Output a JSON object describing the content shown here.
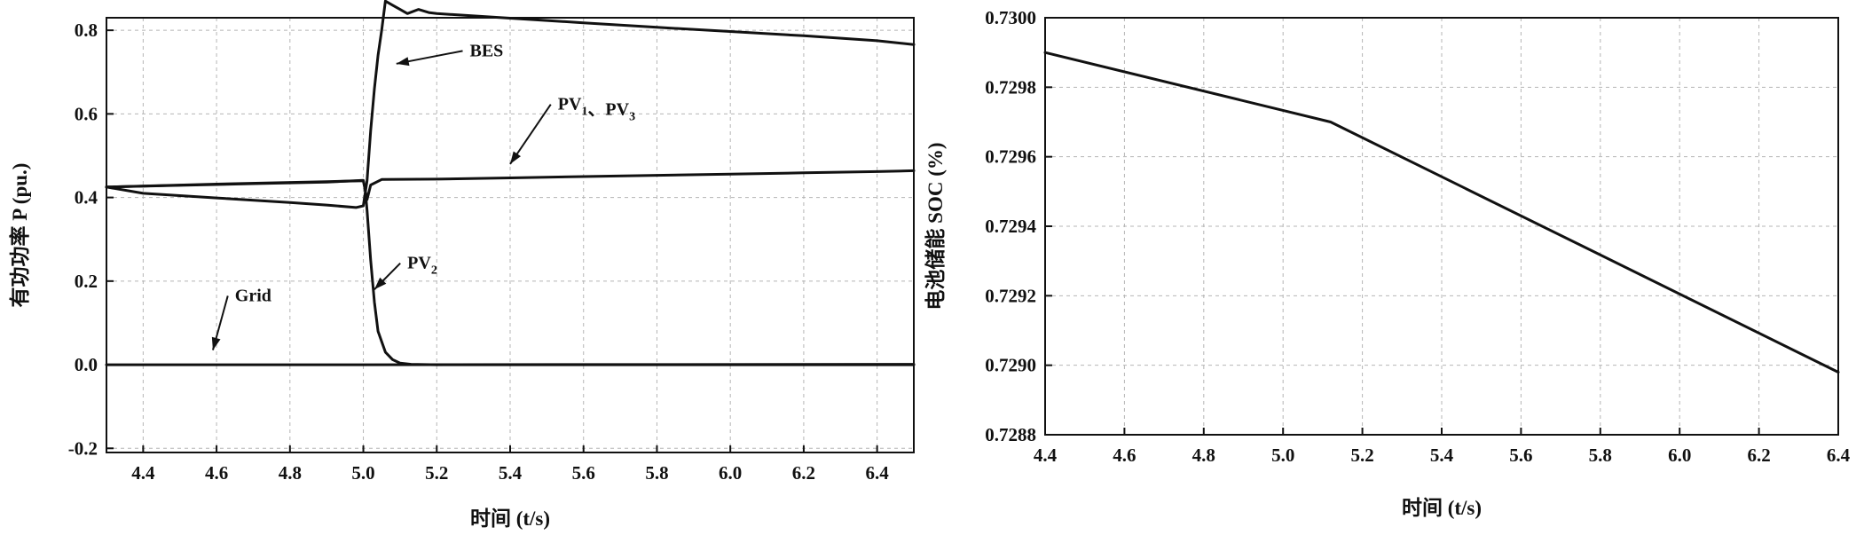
{
  "chart_data": [
    {
      "type": "line",
      "title": "",
      "xlabel": "时间 (t/s)",
      "ylabel": "有功功率 P (pu.)",
      "xlim": [
        4.3,
        6.5
      ],
      "ylim": [
        -0.21,
        0.83
      ],
      "xticks": [
        4.4,
        4.6,
        4.8,
        5.0,
        5.2,
        5.4,
        5.6,
        5.8,
        6.0,
        6.2,
        6.4
      ],
      "xticklabels": [
        "4.4",
        "4.6",
        "4.8",
        "5.0",
        "5.2",
        "5.4",
        "5.6",
        "5.8",
        "6.0",
        "6.2",
        "6.4"
      ],
      "yticks": [
        -0.2,
        0.0,
        0.2,
        0.4,
        0.6,
        0.8
      ],
      "yticklabels": [
        "-0.2",
        "0.0",
        "0.2",
        "0.4",
        "0.6",
        "0.8"
      ],
      "grid": true,
      "series": [
        {
          "name": "BES",
          "x": [
            4.3,
            4.4,
            4.6,
            4.8,
            4.9,
            4.98,
            5.0,
            5.01,
            5.02,
            5.03,
            5.04,
            5.05,
            5.06,
            5.08,
            5.1,
            5.12,
            5.15,
            5.18,
            5.2,
            5.4,
            5.6,
            5.8,
            6.0,
            6.2,
            6.4,
            6.5
          ],
          "y": [
            0.425,
            0.41,
            0.399,
            0.388,
            0.382,
            0.376,
            0.38,
            0.44,
            0.56,
            0.66,
            0.74,
            0.8,
            0.87,
            0.86,
            0.85,
            0.84,
            0.85,
            0.842,
            0.84,
            0.829,
            0.818,
            0.807,
            0.797,
            0.787,
            0.775,
            0.766
          ]
        },
        {
          "name": "PV1、PV3",
          "x": [
            4.3,
            4.5,
            4.7,
            4.9,
            5.0,
            5.01,
            5.02,
            5.05,
            5.2,
            5.4,
            5.6,
            5.8,
            6.0,
            6.2,
            6.4,
            6.5
          ],
          "y": [
            0.425,
            0.429,
            0.433,
            0.437,
            0.441,
            0.395,
            0.43,
            0.443,
            0.444,
            0.447,
            0.45,
            0.453,
            0.456,
            0.459,
            0.462,
            0.464
          ]
        },
        {
          "name": "PV2",
          "x": [
            4.3,
            4.6,
            4.9,
            5.0,
            5.005,
            5.01,
            5.02,
            5.03,
            5.04,
            5.06,
            5.08,
            5.1,
            5.13,
            5.2,
            5.6,
            6.0,
            6.4,
            6.5
          ],
          "y": [
            0.425,
            0.432,
            0.438,
            0.44,
            0.42,
            0.37,
            0.25,
            0.15,
            0.08,
            0.03,
            0.012,
            0.004,
            0.001,
            0.0,
            0.0,
            0.0,
            0.0,
            0.0
          ]
        },
        {
          "name": "Grid",
          "x": [
            4.3,
            5.0,
            6.5
          ],
          "y": [
            0.0,
            0.0,
            0.001
          ]
        }
      ],
      "annotations": [
        {
          "text": "BES",
          "x": 5.29,
          "y": 0.738,
          "tx": 5.09,
          "ty": 0.72
        },
        {
          "text": "PV",
          "sub": "1",
          "text2": "、PV",
          "sub2": "3",
          "x": 5.53,
          "y": 0.61,
          "tx": 5.4,
          "ty": 0.48
        },
        {
          "text": "PV",
          "sub": "2",
          "x": 5.12,
          "y": 0.23,
          "tx": 5.03,
          "ty": 0.18
        },
        {
          "text": "Grid",
          "x": 4.65,
          "y": 0.152,
          "tx": 4.59,
          "ty": 0.035
        }
      ]
    },
    {
      "type": "line",
      "title": "",
      "xlabel": "时间 (t/s)",
      "ylabel": "电池储能 SOC (%)",
      "xlim": [
        4.4,
        6.4
      ],
      "ylim": [
        0.7288,
        0.73
      ],
      "xticks": [
        4.4,
        4.6,
        4.8,
        5.0,
        5.2,
        5.4,
        5.6,
        5.8,
        6.0,
        6.2,
        6.4
      ],
      "xticklabels": [
        "4.4",
        "4.6",
        "4.8",
        "5.0",
        "5.2",
        "5.4",
        "5.6",
        "5.8",
        "6.0",
        "6.2",
        "6.4"
      ],
      "yticks": [
        0.7288,
        0.729,
        0.7292,
        0.7294,
        0.7296,
        0.7298,
        0.73
      ],
      "yticklabels": [
        "0.7288",
        "0.7290",
        "0.7292",
        "0.7294",
        "0.7296",
        "0.7298",
        "0.7300"
      ],
      "grid": true,
      "series": [
        {
          "x": [
            4.4,
            5.12,
            6.4
          ],
          "y": [
            0.7299,
            0.7297,
            0.72898
          ]
        }
      ]
    }
  ]
}
